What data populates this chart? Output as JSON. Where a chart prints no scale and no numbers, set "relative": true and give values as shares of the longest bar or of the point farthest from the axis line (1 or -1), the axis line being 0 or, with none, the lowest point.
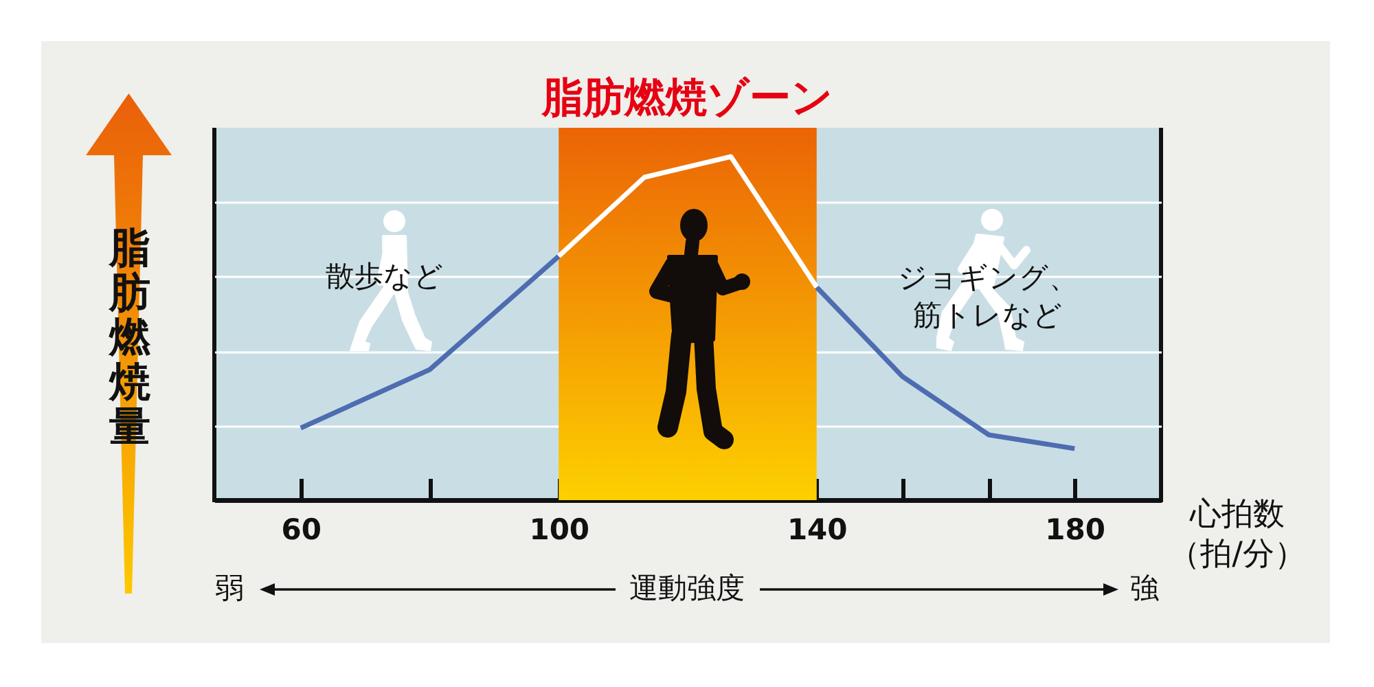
{
  "chart_data": {
    "type": "line",
    "ylabel": "脂肪燃焼量",
    "xlabel": "心拍数（拍/分）",
    "x": [
      60,
      80,
      100,
      113.3,
      126.7,
      140,
      153.3,
      166.7,
      180
    ],
    "xlim": [
      46.6,
      193.4
    ],
    "xticks": [
      60,
      {
        "value": 80,
        "label": null
      },
      100,
      {
        "value": 113.3,
        "label": null
      },
      {
        "value": 126.7,
        "label": null
      },
      140,
      {
        "value": 153.3,
        "label": null
      },
      {
        "value": 166.7,
        "label": null
      },
      180
    ],
    "relative": true,
    "series": [
      {
        "color": "#4e6cb1",
        "values": [
          0.21,
          0.38,
          0.71,
          null,
          null,
          0.62,
          0.36,
          0.19,
          0.15
        ]
      },
      {
        "color": "#ffffff",
        "values": [
          null,
          null,
          0.71,
          0.94,
          1,
          0.62,
          null,
          null,
          null
        ]
      }
    ],
    "bands": [
      {
        "axis": "x",
        "from": 100,
        "to": 140,
        "label": "脂肪燃焼ゾーン",
        "color": "#eb6406"
      }
    ],
    "annotations": [
      "散歩など",
      "ジョギング、筋トレなど",
      "弱",
      "運動強度",
      "強"
    ],
    "grid": "y"
  }
}
